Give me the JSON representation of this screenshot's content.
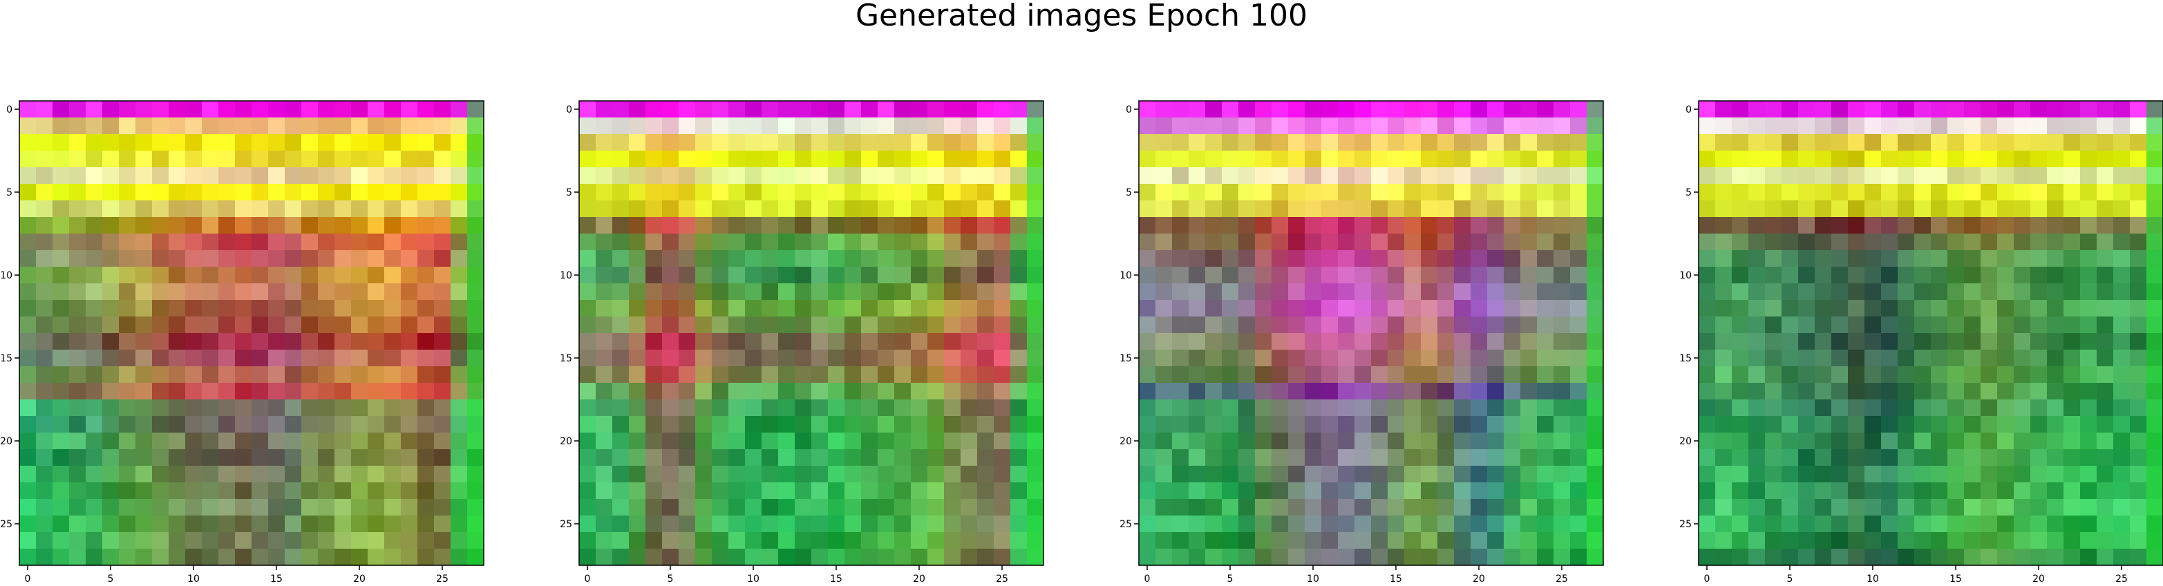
{
  "figure": {
    "title": "Generated images Epoch 100"
  },
  "chart_data": [
    {
      "type": "heatmap",
      "grid_size": [
        28,
        28
      ],
      "x_ticks": [
        0,
        5,
        10,
        15,
        20,
        25
      ],
      "y_ticks": [
        0,
        5,
        10,
        15,
        20,
        25
      ],
      "row_colors": [
        "#ff00ff",
        "#ffcc80",
        "#ffff00",
        "#ffff33",
        "#fff0b0",
        "#ffff00",
        "#e8e070",
        "#e0a000",
        "#e65050",
        "#e07070",
        "#d8b040",
        "#d8a060",
        "#b08040",
        "#a05030",
        "#900030",
        "#a04070",
        "#b07040",
        "#cc3040",
        "#50b080",
        "#308070",
        "#40a060",
        "#208050",
        "#40b060",
        "#20a040",
        "#30c060",
        "#20b040",
        "#40c060",
        "#20a040"
      ],
      "col_tints": [
        "#20d070",
        "#40d080",
        "#30c060",
        "#40b060",
        "#50c070",
        "#60b050",
        "#80a040",
        "#90a040",
        "#a08040",
        "#a06040",
        "#b05050",
        "#b06060",
        "#c05060",
        "#c04050",
        "#b04060",
        "#b05070",
        "#a06070",
        "#b07040",
        "#c08040",
        "#d09040",
        "#d0a030",
        "#e0a030",
        "#e09030",
        "#e07030",
        "#d05030",
        "#c04030",
        "#40c040",
        "#20c020"
      ]
    },
    {
      "type": "heatmap",
      "grid_size": [
        28,
        28
      ],
      "x_ticks": [
        0,
        5,
        10,
        15,
        20,
        25
      ],
      "y_ticks": [
        0,
        5,
        10,
        15,
        20,
        25
      ],
      "row_colors": [
        "#ff00ff",
        "#fff0f0",
        "#ffe060",
        "#ffff00",
        "#ffffa0",
        "#ffff20",
        "#f0f020",
        "#c04020",
        "#80a040",
        "#50a050",
        "#408050",
        "#70a040",
        "#a0b030",
        "#a08040",
        "#c03050",
        "#d04060",
        "#c06040",
        "#70a050",
        "#309050",
        "#20a040",
        "#20b050",
        "#30b060",
        "#20a050",
        "#30c060",
        "#20b050",
        "#20c060",
        "#20b040",
        "#20a040"
      ],
      "col_tints": [
        "#40c070",
        "#60c080",
        "#50b070",
        "#80a050",
        "#c04050",
        "#d03060",
        "#c05060",
        "#80a040",
        "#50a050",
        "#40b060",
        "#30b060",
        "#30a050",
        "#20b050",
        "#30a050",
        "#40b060",
        "#30c050",
        "#40b040",
        "#50a040",
        "#60b040",
        "#70b040",
        "#80b040",
        "#a0b030",
        "#c07040",
        "#d06050",
        "#c04050",
        "#e04060",
        "#40c060",
        "#20c040"
      ]
    },
    {
      "type": "heatmap",
      "grid_size": [
        28,
        28
      ],
      "x_ticks": [
        0,
        5,
        10,
        15,
        20,
        25
      ],
      "y_ticks": [
        0,
        5,
        10,
        15,
        20,
        25
      ],
      "row_colors": [
        "#ff00ff",
        "#ff80ff",
        "#ffe060",
        "#ffff20",
        "#fff0c0",
        "#ffff40",
        "#f0e040",
        "#d02020",
        "#c03030",
        "#c03070",
        "#b05090",
        "#c060c0",
        "#d050d0",
        "#c060a0",
        "#d08080",
        "#b08060",
        "#807040",
        "#503090",
        "#309060",
        "#208050",
        "#30a050",
        "#40b060",
        "#30b060",
        "#20c060",
        "#30b050",
        "#20c060",
        "#20b040",
        "#20a040"
      ],
      "col_tints": [
        "#40b080",
        "#50b070",
        "#40a060",
        "#40a060",
        "#40a050",
        "#30a050",
        "#408050",
        "#806040",
        "#a05060",
        "#b04080",
        "#c040b0",
        "#d040c0",
        "#d050d0",
        "#c050c0",
        "#c060a0",
        "#b07070",
        "#c09050",
        "#b08040",
        "#a07060",
        "#8060a0",
        "#6050b0",
        "#5070a0",
        "#50a070",
        "#60c060",
        "#40c060",
        "#30b050",
        "#30c060",
        "#20c040"
      ]
    },
    {
      "type": "heatmap",
      "grid_size": [
        28,
        28
      ],
      "x_ticks": [
        0,
        5,
        10,
        15,
        20,
        25
      ],
      "y_ticks": [
        0,
        5,
        10,
        15,
        20,
        25
      ],
      "row_colors": [
        "#ff00ff",
        "#ffe0f0",
        "#ffe040",
        "#ffff00",
        "#ffffb0",
        "#ffff20",
        "#f0f020",
        "#c03030",
        "#806040",
        "#508050",
        "#307040",
        "#408050",
        "#509050",
        "#408050",
        "#306040",
        "#408050",
        "#50a050",
        "#409050",
        "#309060",
        "#20a050",
        "#30b050",
        "#20a050",
        "#30c060",
        "#20b050",
        "#30c060",
        "#20c050",
        "#20b040",
        "#208040"
      ],
      "col_tints": [
        "#40b070",
        "#50c070",
        "#40b060",
        "#40a070",
        "#409060",
        "#308060",
        "#307060",
        "#306050",
        "#305050",
        "#404040",
        "#304050",
        "#305060",
        "#307050",
        "#409050",
        "#50a050",
        "#60b040",
        "#70b040",
        "#80b040",
        "#70b040",
        "#60b050",
        "#50b050",
        "#40b050",
        "#40c050",
        "#30c050",
        "#30b050",
        "#30c060",
        "#40c060",
        "#20c040"
      ]
    }
  ]
}
